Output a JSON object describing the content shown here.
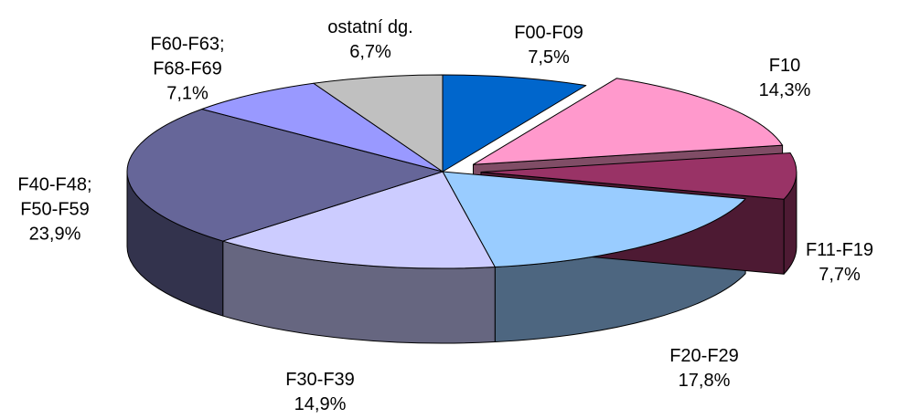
{
  "chart_data": {
    "type": "pie3d",
    "categories": [
      "F00-F09",
      "F10",
      "F11-F19",
      "F20-F29",
      "F30-F39",
      "F40-F48; F50-F59",
      "F60-F63; F68-F69",
      "ostatní dg."
    ],
    "values": [
      7.5,
      14.3,
      7.7,
      17.8,
      14.9,
      23.9,
      7.1,
      6.7
    ],
    "value_labels": [
      "7,5%",
      "14,3%",
      "7,7%",
      "17,8%",
      "14,9%",
      "23,9%",
      "7,1%",
      "6,7%"
    ],
    "colors": [
      "#0066cc",
      "#ff99cc",
      "#993366",
      "#99ccff",
      "#ccccff",
      "#666699",
      "#9999ff",
      "#c0c0c0"
    ],
    "exploded": [
      1,
      2
    ]
  }
}
